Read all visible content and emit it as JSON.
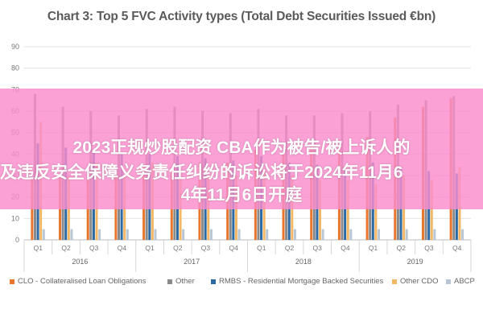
{
  "chart_data": {
    "type": "bar",
    "title": "Chart 3: Top 5 FVC Activity types (Total Debt Securities Issued €bn)",
    "ylim": [
      0,
      90
    ],
    "yticks": [
      0,
      10,
      20,
      30,
      40,
      50,
      60,
      70,
      80,
      90
    ],
    "grid": true,
    "legend_position": "bottom",
    "categories": [
      "Q1",
      "Q2",
      "Q3",
      "Q4",
      "Q1",
      "Q2",
      "Q3",
      "Q4",
      "Q1",
      "Q2",
      "Q3",
      "Q4",
      "Q1",
      "Q2",
      "Q3",
      "Q4"
    ],
    "years": [
      "2016",
      "2017",
      "2018",
      "2019"
    ],
    "series": [
      {
        "name": "CLO - Collateralised Loan Obligations",
        "color": "#e8762c",
        "values": [
          29,
          30,
          31,
          33,
          35,
          34,
          36,
          36,
          42,
          40,
          44,
          45,
          48,
          57,
          62,
          66
        ]
      },
      {
        "name": "Other",
        "color": "#8a8a8a",
        "values": [
          68,
          62,
          60,
          58,
          61,
          62,
          60,
          59,
          61,
          58,
          58,
          59,
          60,
          63,
          65,
          67
        ]
      },
      {
        "name": "RMBS - Residential Mortgage Backed Securities",
        "color": "#2c6aa6",
        "values": [
          45,
          43,
          41,
          40,
          40,
          39,
          38,
          37,
          39,
          36,
          35,
          34,
          36,
          33,
          32,
          31
        ]
      },
      {
        "name": "Other CDO",
        "color": "#f2b866",
        "values": [
          55,
          30,
          36,
          30,
          36,
          34,
          30,
          30,
          32,
          30,
          28,
          28,
          26,
          30,
          28,
          34
        ]
      },
      {
        "name": "ABCP",
        "color": "#b8c6d6",
        "values": [
          5,
          5,
          5,
          5,
          5,
          5,
          5,
          5,
          5,
          5,
          5,
          5,
          5,
          5,
          5,
          5
        ]
      }
    ]
  },
  "overlay": {
    "line1": "2023正规炒股配资 CBA作为被告/被上诉人的",
    "line2": "及违反安全保障义务责任纠纷的诉讼将于2024年11月6",
    "line3": "4年11月6日开庭"
  }
}
